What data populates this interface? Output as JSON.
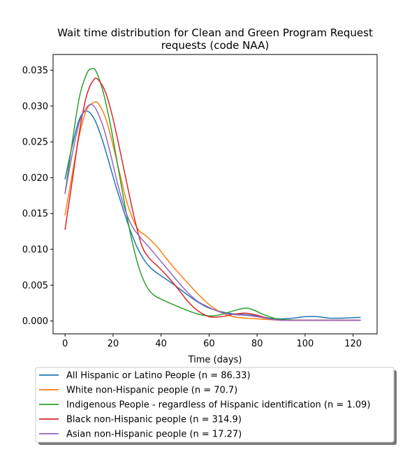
{
  "chart_data": {
    "type": "line",
    "title_line1": "Wait time distribution  for Clean and Green Program Request",
    "title_line2": "requests (code NAA)",
    "xlabel": "Time (days)",
    "ylabel": "",
    "xlim": [
      -5,
      130
    ],
    "ylim": [
      -0.0018,
      0.0372
    ],
    "x_ticks": [
      0,
      20,
      40,
      60,
      80,
      100,
      120
    ],
    "x_tick_labels": [
      "0",
      "20",
      "40",
      "60",
      "80",
      "100",
      "120"
    ],
    "y_ticks": [
      0.0,
      0.005,
      0.01,
      0.015,
      0.02,
      0.025,
      0.03,
      0.035
    ],
    "y_tick_labels": [
      "0.000",
      "0.005",
      "0.010",
      "0.015",
      "0.020",
      "0.025",
      "0.030",
      "0.035"
    ],
    "grid": false,
    "legend_position": "below chart",
    "series": [
      {
        "name": "All Hispanic or Latino People (n = 86.33)",
        "color": "#1f77b4",
        "points": [
          [
            0,
            0.0198
          ],
          [
            3,
            0.0245
          ],
          [
            6,
            0.0282
          ],
          [
            9,
            0.0293
          ],
          [
            12,
            0.0283
          ],
          [
            15,
            0.0258
          ],
          [
            18,
            0.0225
          ],
          [
            21,
            0.019
          ],
          [
            24,
            0.0158
          ],
          [
            27,
            0.0128
          ],
          [
            30,
            0.0103
          ],
          [
            33,
            0.0085
          ],
          [
            36,
            0.0073
          ],
          [
            40,
            0.0063
          ],
          [
            44,
            0.0054
          ],
          [
            48,
            0.0044
          ],
          [
            52,
            0.0034
          ],
          [
            56,
            0.0025
          ],
          [
            60,
            0.0018
          ],
          [
            65,
            0.0013
          ],
          [
            70,
            0.001
          ],
          [
            75,
            0.0009
          ],
          [
            80,
            0.0007
          ],
          [
            85,
            0.0004
          ],
          [
            90,
            0.0003
          ],
          [
            95,
            0.0004
          ],
          [
            100,
            0.0006
          ],
          [
            105,
            0.0006
          ],
          [
            110,
            0.0004
          ],
          [
            115,
            0.0004
          ],
          [
            123,
            0.0005
          ]
        ]
      },
      {
        "name": "White non-Hispanic people (n = 70.7)",
        "color": "#ff7f0e",
        "points": [
          [
            0,
            0.0148
          ],
          [
            3,
            0.0205
          ],
          [
            6,
            0.026
          ],
          [
            9,
            0.0295
          ],
          [
            12,
            0.0305
          ],
          [
            14,
            0.0303
          ],
          [
            17,
            0.0282
          ],
          [
            20,
            0.0245
          ],
          [
            23,
            0.0203
          ],
          [
            26,
            0.0163
          ],
          [
            30,
            0.013
          ],
          [
            34,
            0.0118
          ],
          [
            38,
            0.0105
          ],
          [
            42,
            0.0088
          ],
          [
            46,
            0.0072
          ],
          [
            50,
            0.0057
          ],
          [
            55,
            0.0039
          ],
          [
            60,
            0.0023
          ],
          [
            65,
            0.0012
          ],
          [
            70,
            0.0006
          ],
          [
            75,
            0.0004
          ],
          [
            80,
            0.0003
          ],
          [
            85,
            0.0002
          ],
          [
            90,
            0.0001
          ],
          [
            100,
            0.0001
          ],
          [
            110,
            0.0001
          ],
          [
            123,
            0.0001
          ]
        ]
      },
      {
        "name": "Indigenous People - regardless of Hispanic identification (n = 1.09)",
        "color": "#2ca02c",
        "points": [
          [
            0,
            0.0178
          ],
          [
            3,
            0.025
          ],
          [
            6,
            0.0313
          ],
          [
            9,
            0.0345
          ],
          [
            11,
            0.0352
          ],
          [
            13,
            0.0348
          ],
          [
            16,
            0.0318
          ],
          [
            19,
            0.0272
          ],
          [
            22,
            0.0216
          ],
          [
            25,
            0.016
          ],
          [
            28,
            0.011
          ],
          [
            31,
            0.0072
          ],
          [
            34,
            0.0048
          ],
          [
            37,
            0.0036
          ],
          [
            41,
            0.0029
          ],
          [
            45,
            0.0023
          ],
          [
            50,
            0.0016
          ],
          [
            55,
            0.001
          ],
          [
            60,
            0.0007
          ],
          [
            65,
            0.0009
          ],
          [
            70,
            0.0014
          ],
          [
            75,
            0.0018
          ],
          [
            78,
            0.0016
          ],
          [
            82,
            0.001
          ],
          [
            86,
            0.0005
          ],
          [
            90,
            0.0002
          ],
          [
            100,
            0.0001
          ],
          [
            110,
            0.0001
          ],
          [
            123,
            0.0001
          ]
        ]
      },
      {
        "name": "Black non-Hispanic people (n = 314.9)",
        "color": "#d62728",
        "points": [
          [
            0,
            0.0128
          ],
          [
            3,
            0.0196
          ],
          [
            6,
            0.0265
          ],
          [
            9,
            0.0315
          ],
          [
            12,
            0.0337
          ],
          [
            14,
            0.0336
          ],
          [
            17,
            0.0318
          ],
          [
            20,
            0.0282
          ],
          [
            23,
            0.0236
          ],
          [
            26,
            0.0188
          ],
          [
            29,
            0.0142
          ],
          [
            32,
            0.0105
          ],
          [
            35,
            0.0088
          ],
          [
            39,
            0.0075
          ],
          [
            43,
            0.0061
          ],
          [
            47,
            0.0045
          ],
          [
            51,
            0.0028
          ],
          [
            55,
            0.0015
          ],
          [
            60,
            0.0006
          ],
          [
            65,
            0.0006
          ],
          [
            70,
            0.0009
          ],
          [
            75,
            0.0011
          ],
          [
            80,
            0.0008
          ],
          [
            85,
            0.0003
          ],
          [
            90,
            0.0001
          ],
          [
            100,
            0.0001
          ],
          [
            110,
            0.0001
          ],
          [
            123,
            0.0001
          ]
        ]
      },
      {
        "name": "Asian non-Hispanic people (n = 17.27)",
        "color": "#9467bd",
        "points": [
          [
            0,
            0.0178
          ],
          [
            3,
            0.0233
          ],
          [
            6,
            0.0278
          ],
          [
            9,
            0.0298
          ],
          [
            11,
            0.0302
          ],
          [
            13,
            0.0295
          ],
          [
            16,
            0.027
          ],
          [
            19,
            0.0232
          ],
          [
            22,
            0.019
          ],
          [
            25,
            0.0155
          ],
          [
            28,
            0.0132
          ],
          [
            31,
            0.0118
          ],
          [
            35,
            0.0103
          ],
          [
            39,
            0.0087
          ],
          [
            43,
            0.0071
          ],
          [
            47,
            0.0055
          ],
          [
            51,
            0.004
          ],
          [
            55,
            0.0028
          ],
          [
            60,
            0.0019
          ],
          [
            65,
            0.0012
          ],
          [
            70,
            0.0009
          ],
          [
            75,
            0.0008
          ],
          [
            80,
            0.0006
          ],
          [
            85,
            0.0003
          ],
          [
            90,
            0.0001
          ],
          [
            100,
            0.0001
          ],
          [
            110,
            0.0001
          ],
          [
            123,
            0.0001
          ]
        ]
      }
    ]
  }
}
